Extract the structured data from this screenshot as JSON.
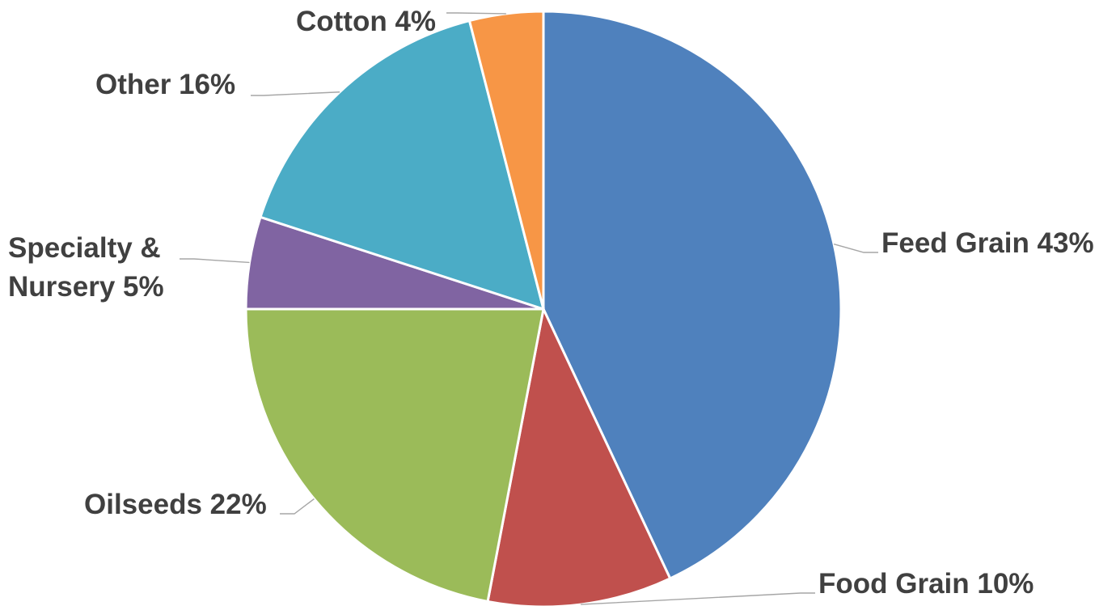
{
  "chart_data": {
    "type": "pie",
    "slices": [
      {
        "name": "Feed Grain",
        "value": 43,
        "label": "Feed Grain 43%",
        "color": "#4f81bd"
      },
      {
        "name": "Food Grain",
        "value": 10,
        "label": "Food Grain 10%",
        "color": "#c0504d"
      },
      {
        "name": "Oilseeds",
        "value": 22,
        "label": "Oilseeds 22%",
        "color": "#9bbb59"
      },
      {
        "name": "Specialty & Nursery",
        "value": 5,
        "label": [
          "Specialty &",
          "Nursery 5%"
        ],
        "color": "#8064a2"
      },
      {
        "name": "Other",
        "value": 16,
        "label": "Other 16%",
        "color": "#4bacc6"
      },
      {
        "name": "Cotton",
        "value": 4,
        "label": "Cotton 4%",
        "color": "#f79646"
      }
    ],
    "start": "top",
    "direction": "clockwise"
  }
}
